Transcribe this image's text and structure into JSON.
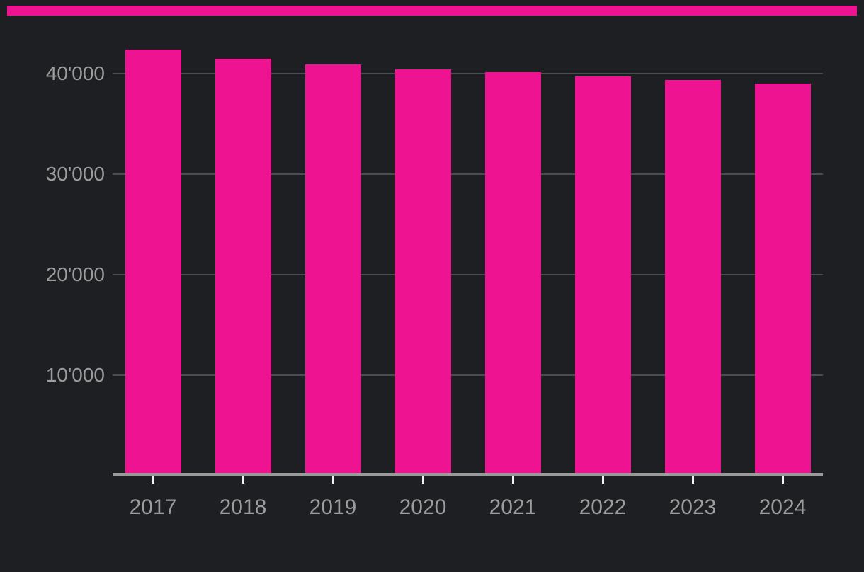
{
  "window": {
    "background_color": "#1E1F22"
  },
  "accent_stripe": {
    "color": "#EE1390"
  },
  "chart_data": {
    "type": "bar",
    "title": "",
    "xlabel": "",
    "ylabel": "",
    "categories": [
      "2017",
      "2018",
      "2019",
      "2020",
      "2021",
      "2022",
      "2023",
      "2024"
    ],
    "values": [
      42400,
      41450,
      40900,
      40450,
      40150,
      39700,
      39350,
      39000
    ],
    "ylim": [
      0,
      45000
    ],
    "y_ticks": [
      {
        "value": 10000,
        "label": "10'000"
      },
      {
        "value": 20000,
        "label": "20'000"
      },
      {
        "value": 30000,
        "label": "30'000"
      },
      {
        "value": 40000,
        "label": "40'000"
      }
    ],
    "grid": "horizontal-only",
    "legend": "none",
    "colors": {
      "bar": "#EE1390",
      "grid": "#4B4C4F",
      "axis_line": "#9A9A9A",
      "x_tick": "#F2F2F2",
      "label": "#9C9C9C"
    }
  }
}
